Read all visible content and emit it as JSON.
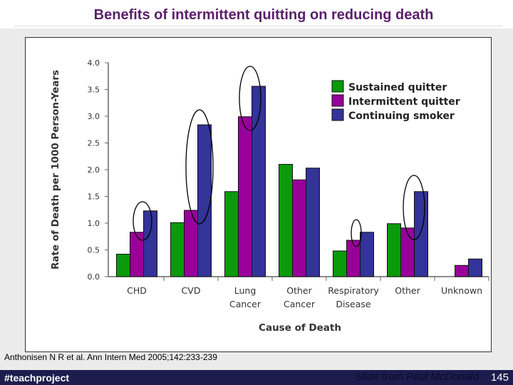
{
  "slide": {
    "title": "Benefits of intermittent quitting on reducing death",
    "citation": "Anthonisen N R et al. Ann Intern Med 2005;142:233-239",
    "footer_tag": "#teachproject",
    "credit": "Slide from Paul McDonald",
    "page_number": "145"
  },
  "chart_data": {
    "type": "bar",
    "title": "",
    "xlabel": "Cause of Death",
    "ylabel": "Rate of Death per 1000 Person-Years",
    "ylim": [
      0,
      4.0
    ],
    "yticks": [
      "0.0",
      "0.5",
      "1.0",
      "1.5",
      "2.0",
      "2.5",
      "3.0",
      "3.5",
      "4.0"
    ],
    "categories": [
      [
        "CHD",
        ""
      ],
      [
        "CVD",
        ""
      ],
      [
        "Lung",
        "Cancer"
      ],
      [
        "Other",
        "Cancer"
      ],
      [
        "Respiratory",
        "Disease"
      ],
      [
        "Other",
        ""
      ],
      [
        "Unknown",
        ""
      ]
    ],
    "series": [
      {
        "name": "Sustained quitter",
        "color": "#0a9a0a",
        "values": [
          0.42,
          1.01,
          1.59,
          2.1,
          0.48,
          0.99,
          0
        ]
      },
      {
        "name": "Intermittent quitter",
        "color": "#990099",
        "values": [
          0.83,
          1.24,
          2.99,
          1.81,
          0.68,
          0.91,
          0.21
        ]
      },
      {
        "name": "Continuing smoker",
        "color": "#333399",
        "values": [
          1.23,
          2.84,
          3.56,
          2.03,
          0.83,
          1.59,
          0.33
        ]
      }
    ],
    "legend": "top-right",
    "annotations": "hand-drawn ellipses around intermittent vs continuing smoker bars for CHD, CVD, Lung Cancer, Respiratory Disease, Other",
    "grid": false
  }
}
